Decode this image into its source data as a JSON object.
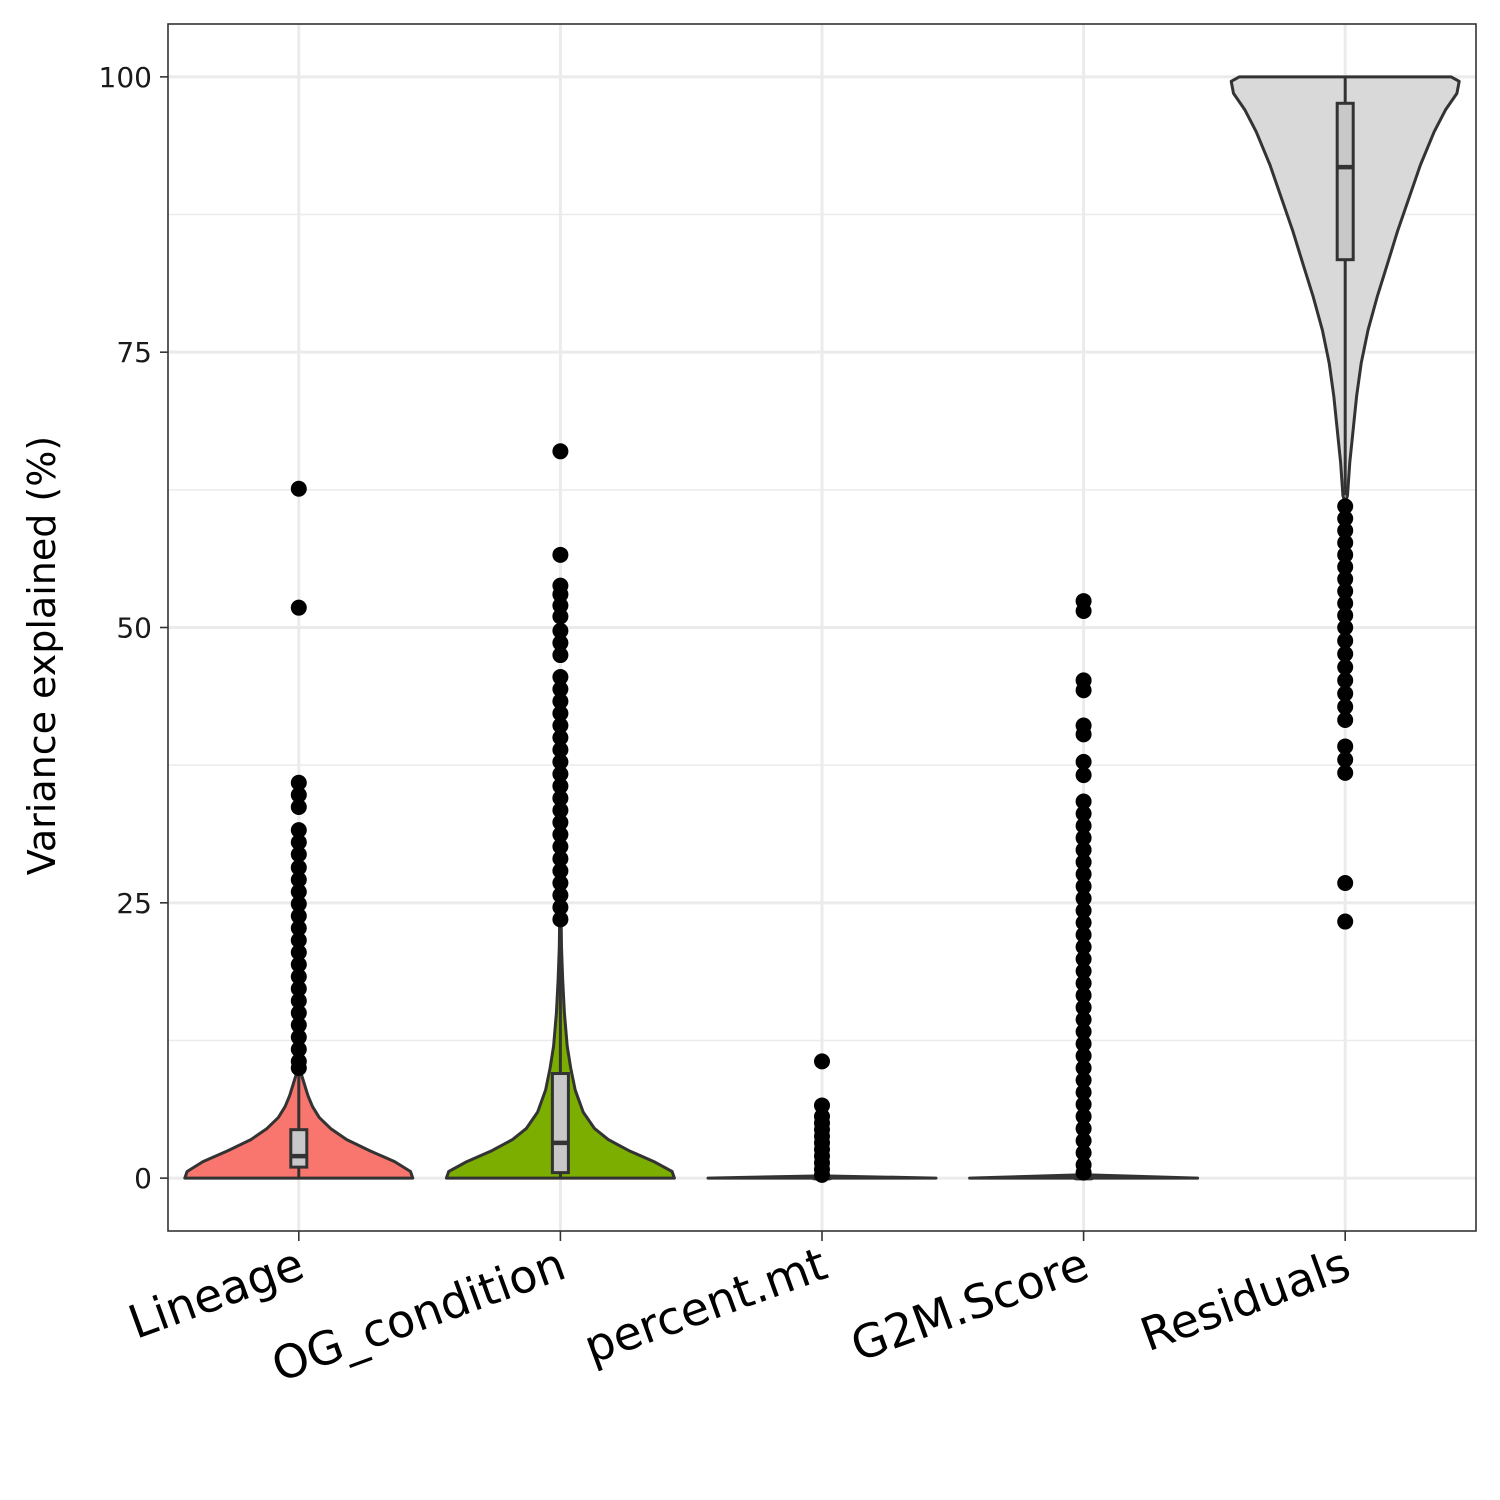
{
  "chart_data": {
    "type": "violin",
    "ylabel": "Variance explained (%)",
    "xlabel": "",
    "ylim": [
      -4.8,
      104.8
    ],
    "yticks": [
      0,
      25,
      50,
      75,
      100
    ],
    "grid": true,
    "legend": "none",
    "categories": [
      "Lineage",
      "OG_condition",
      "percent.mt",
      "G2M.Score",
      "Residuals"
    ],
    "series": [
      {
        "category": "Lineage",
        "color": "#F8766D",
        "box": {
          "q1": 1.0,
          "median": 2.0,
          "q3": 4.4,
          "whisker_low": 0,
          "whisker_high": 9.5
        },
        "outliers": [
          62.6,
          51.8,
          35.9,
          34.8,
          33.7,
          31.6,
          30.5,
          29.4,
          28.2,
          27.1,
          26.0,
          24.9,
          23.8,
          22.7,
          21.6,
          20.5,
          19.4,
          18.3,
          17.2,
          16.1,
          15.0,
          13.9,
          12.8,
          11.7,
          10.6,
          10.0
        ],
        "density": [
          [
            0,
            1.0
          ],
          [
            0.6,
            0.98
          ],
          [
            1.5,
            0.84
          ],
          [
            2.5,
            0.62
          ],
          [
            3.5,
            0.42
          ],
          [
            4.5,
            0.28
          ],
          [
            5.5,
            0.18
          ],
          [
            6.5,
            0.12
          ],
          [
            7.5,
            0.08
          ],
          [
            8.5,
            0.05
          ],
          [
            9.5,
            0.02
          ],
          [
            10,
            0
          ]
        ]
      },
      {
        "category": "OG_condition",
        "color": "#7CAE00",
        "box": {
          "q1": 0.5,
          "median": 3.2,
          "q3": 9.5,
          "whisker_low": 0,
          "whisker_high": 23
        },
        "outliers": [
          66.0,
          56.6,
          53.8,
          53.0,
          52.0,
          51.0,
          49.7,
          48.6,
          47.5,
          45.5,
          44.4,
          43.3,
          42.2,
          41.1,
          40.0,
          38.9,
          37.8,
          36.7,
          35.6,
          34.5,
          33.4,
          32.3,
          31.2,
          30.1,
          29.0,
          27.9,
          26.8,
          25.7,
          24.6,
          23.5
        ],
        "density": [
          [
            0,
            1.0
          ],
          [
            0.6,
            0.98
          ],
          [
            1.5,
            0.82
          ],
          [
            2.5,
            0.6
          ],
          [
            3.5,
            0.42
          ],
          [
            4.5,
            0.3
          ],
          [
            6,
            0.2
          ],
          [
            8,
            0.13
          ],
          [
            10,
            0.09
          ],
          [
            12,
            0.06
          ],
          [
            15,
            0.035
          ],
          [
            18,
            0.02
          ],
          [
            21,
            0.01
          ],
          [
            23,
            0
          ]
        ]
      },
      {
        "category": "percent.mt",
        "color": "#00BFC4",
        "box": {
          "q1": 0,
          "median": 0,
          "q3": 0.05,
          "whisker_low": 0,
          "whisker_high": 0.1
        },
        "outliers": [
          10.6,
          6.6,
          5.6,
          5.0,
          4.4,
          3.8,
          3.2,
          2.6,
          2.0,
          1.4,
          0.8,
          0.3
        ],
        "density": [
          [
            0,
            1.0
          ],
          [
            0.2,
            0
          ]
        ]
      },
      {
        "category": "G2M.Score",
        "color": "#C77CFF",
        "box": {
          "q1": 0,
          "median": 0,
          "q3": 0.05,
          "whisker_low": 0,
          "whisker_high": 0.2
        },
        "outliers": [
          52.4,
          51.5,
          45.2,
          44.3,
          41.1,
          40.3,
          37.8,
          36.6,
          34.2,
          33.1,
          32.0,
          30.9,
          29.8,
          28.7,
          27.6,
          26.5,
          25.4,
          24.3,
          23.2,
          22.1,
          21.0,
          19.9,
          18.8,
          17.7,
          16.6,
          15.5,
          14.4,
          13.3,
          12.2,
          11.1,
          10.0,
          8.9,
          7.8,
          6.7,
          5.6,
          4.5,
          3.4,
          2.3,
          1.2,
          0.5
        ],
        "density": [
          [
            0,
            1.0
          ],
          [
            0.3,
            0
          ]
        ]
      },
      {
        "category": "Residuals",
        "color": "#D9D9D9",
        "box": {
          "q1": 83.4,
          "median": 91.8,
          "q3": 97.6,
          "whisker_low": 62,
          "whisker_high": 100
        },
        "outliers": [
          61.0,
          59.9,
          58.8,
          57.7,
          56.6,
          55.5,
          54.4,
          53.3,
          52.2,
          51.1,
          50.0,
          48.8,
          47.6,
          46.4,
          45.2,
          44.0,
          42.8,
          41.6,
          39.2,
          38.0,
          36.8,
          26.8,
          23.3
        ],
        "density": [
          [
            100,
            0.93
          ],
          [
            99.6,
            1.0
          ],
          [
            98.5,
            0.98
          ],
          [
            97,
            0.88
          ],
          [
            95,
            0.78
          ],
          [
            92,
            0.66
          ],
          [
            89,
            0.56
          ],
          [
            86,
            0.46
          ],
          [
            83,
            0.37
          ],
          [
            80,
            0.28
          ],
          [
            77,
            0.2
          ],
          [
            74,
            0.14
          ],
          [
            71,
            0.1
          ],
          [
            68,
            0.07
          ],
          [
            65,
            0.04
          ],
          [
            62,
            0.02
          ],
          [
            61.5,
            0
          ]
        ]
      }
    ]
  }
}
